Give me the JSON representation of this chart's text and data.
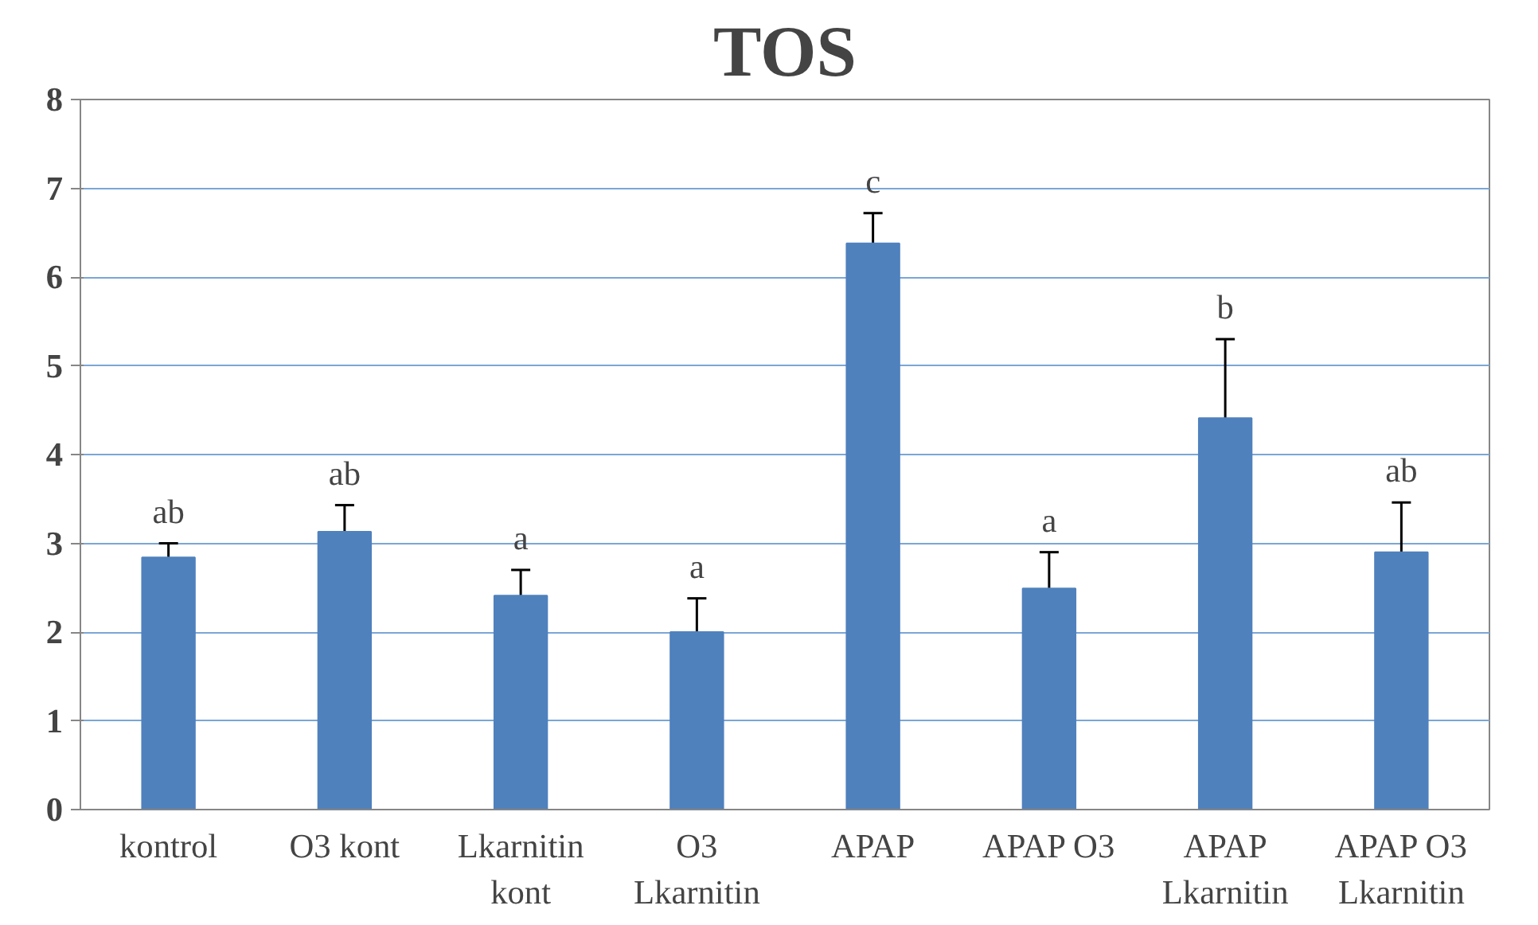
{
  "chart_data": {
    "type": "bar",
    "title": "TOS",
    "categories": [
      "kontrol",
      "O3 kont",
      "Lkarnitin kont",
      "O3 Lkarnitin",
      "APAP",
      "APAP O3",
      "APAP Lkarnitin",
      "APAP O3 Lkarnitin"
    ],
    "values": [
      2.84,
      3.13,
      2.41,
      2.0,
      6.38,
      2.49,
      4.41,
      2.9
    ],
    "errors": [
      0.16,
      0.3,
      0.29,
      0.38,
      0.34,
      0.41,
      0.89,
      0.56
    ],
    "color": "#4f81bd",
    "ylim": [
      0,
      8
    ],
    "yticks": [
      0,
      1,
      2,
      3,
      4,
      5,
      6,
      7,
      8
    ],
    "grid": "y",
    "annotations": [
      {
        "text": "ab",
        "x": "kontrol",
        "y": 3.0
      },
      {
        "text": "ab",
        "x": "O3 kont",
        "y": 3.43
      },
      {
        "text": "a",
        "x": "Lkarnitin kont",
        "y": 2.7
      },
      {
        "text": "a",
        "x": "O3 Lkarnitin",
        "y": 2.38
      },
      {
        "text": "c",
        "x": "APAP",
        "y": 6.72
      },
      {
        "text": "a",
        "x": "APAP O3",
        "y": 2.9
      },
      {
        "text": "b",
        "x": "APAP Lkarnitin",
        "y": 5.3
      },
      {
        "text": "ab",
        "x": "APAP O3 Lkarnitin",
        "y": 3.46
      }
    ]
  }
}
